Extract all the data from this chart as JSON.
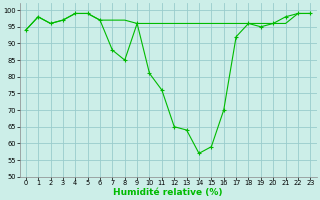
{
  "x": [
    0,
    1,
    2,
    3,
    4,
    5,
    6,
    7,
    8,
    9,
    10,
    11,
    12,
    13,
    14,
    15,
    16,
    17,
    18,
    19,
    20,
    21,
    22,
    23
  ],
  "y_main": [
    94,
    98,
    96,
    97,
    99,
    99,
    97,
    88,
    85,
    96,
    81,
    76,
    65,
    64,
    57,
    59,
    70,
    92,
    96,
    95,
    96,
    98,
    99,
    99
  ],
  "y_flat": [
    94,
    98,
    96,
    97,
    99,
    99,
    97,
    97,
    97,
    96,
    96,
    96,
    96,
    96,
    96,
    96,
    96,
    96,
    96,
    96,
    96,
    96,
    99,
    99
  ],
  "line_color": "#00bb00",
  "bg_color": "#cceee8",
  "grid_color": "#99cccc",
  "xlabel": "Humidité relative (%)",
  "xlim": [
    -0.5,
    23.5
  ],
  "ylim": [
    50,
    102
  ],
  "yticks": [
    50,
    55,
    60,
    65,
    70,
    75,
    80,
    85,
    90,
    95,
    100
  ],
  "xticks": [
    0,
    1,
    2,
    3,
    4,
    5,
    6,
    7,
    8,
    9,
    10,
    11,
    12,
    13,
    14,
    15,
    16,
    17,
    18,
    19,
    20,
    21,
    22,
    23
  ],
  "tick_fontsize": 4.8,
  "xlabel_fontsize": 6.5,
  "linewidth": 0.8,
  "markersize": 3.2,
  "markeredgewidth": 0.8
}
